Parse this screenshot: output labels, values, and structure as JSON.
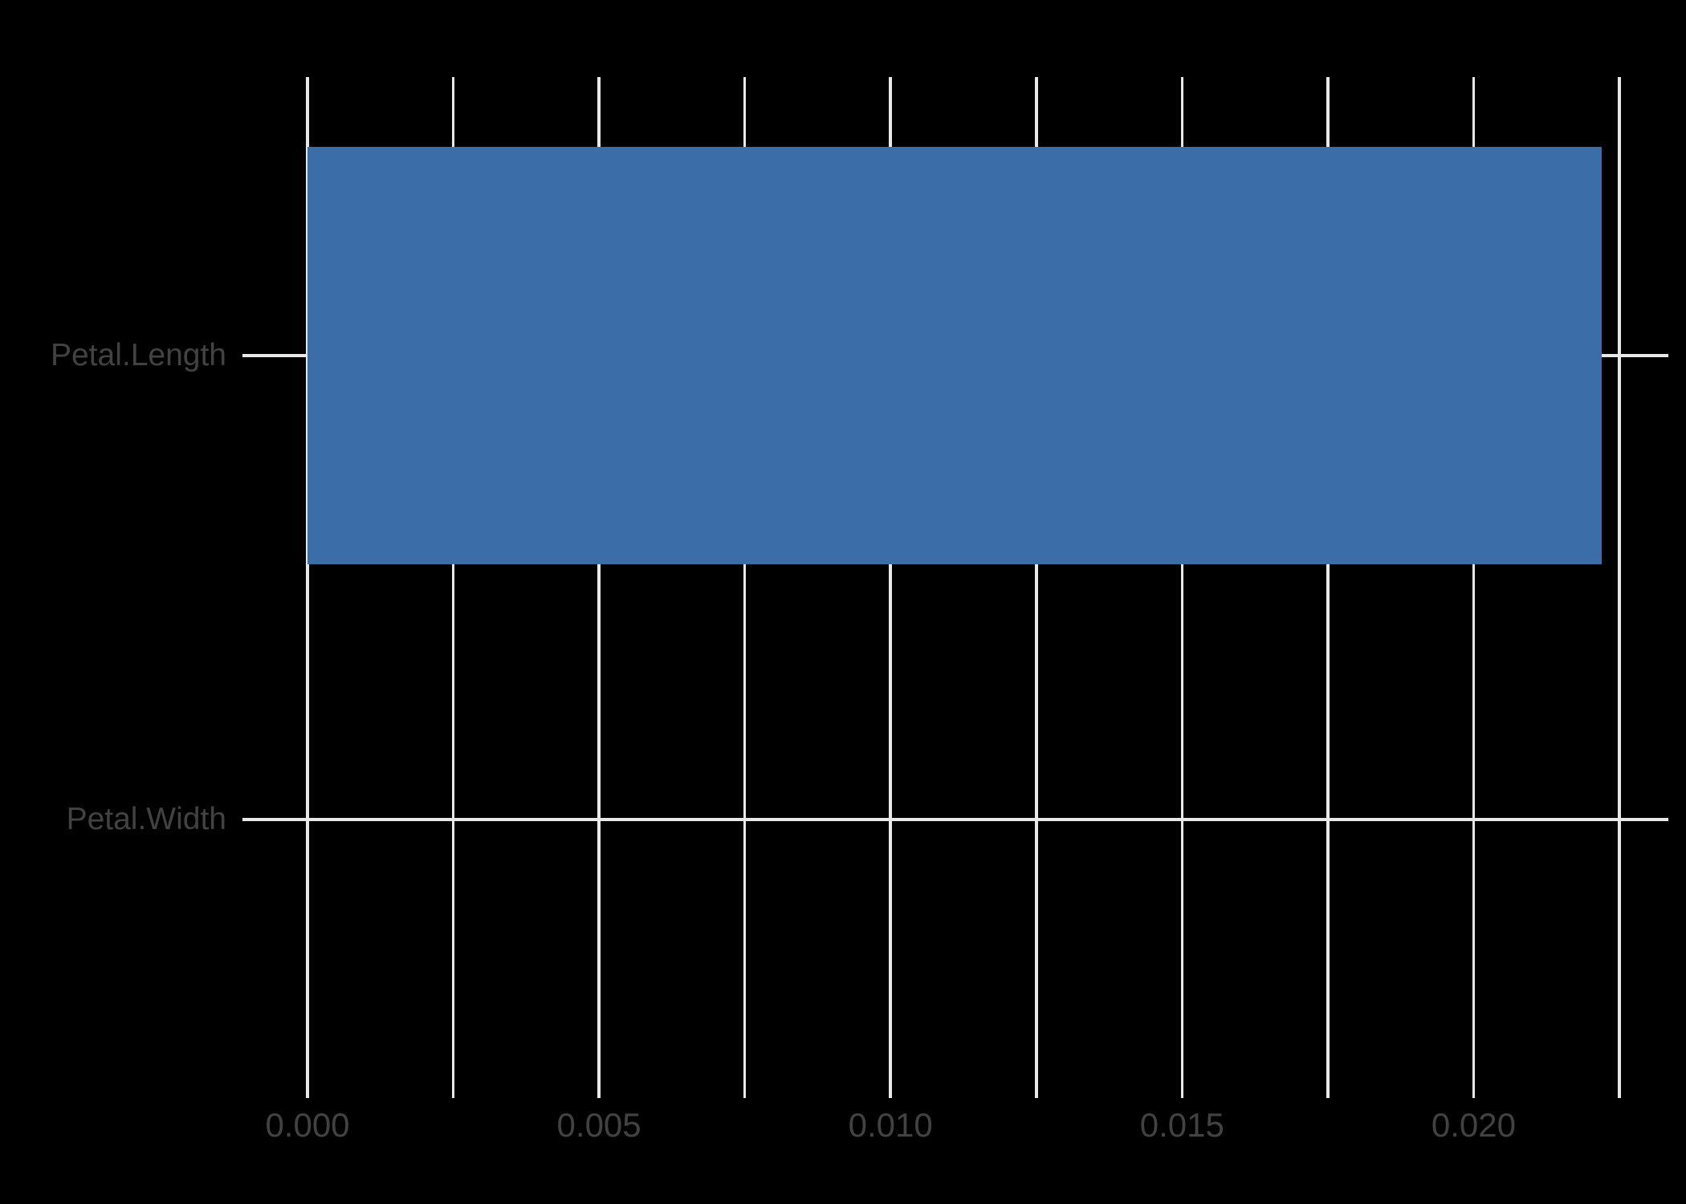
{
  "chart_data": {
    "type": "bar",
    "orientation": "horizontal",
    "categories": [
      "Petal.Length",
      "Petal.Width"
    ],
    "values": [
      0.0222,
      0
    ],
    "xlabel": "",
    "ylabel": "",
    "xlim": [
      0,
      0.0225
    ],
    "x_ticks": [
      {
        "value": 0.0,
        "label": "0.000"
      },
      {
        "value": 0.005,
        "label": "0.005"
      },
      {
        "value": 0.01,
        "label": "0.010"
      },
      {
        "value": 0.015,
        "label": "0.015"
      },
      {
        "value": 0.02,
        "label": "0.020"
      }
    ],
    "gridline_values": [
      0,
      0.0025,
      0.005,
      0.0075,
      0.01,
      0.0125,
      0.015,
      0.0175,
      0.02,
      0.0225
    ],
    "grid": true,
    "legend": false,
    "colors": {
      "background": "#000000",
      "bar": "#3B6EA9",
      "gridline": "#E8E8E8",
      "axis_text": "#424242"
    }
  }
}
